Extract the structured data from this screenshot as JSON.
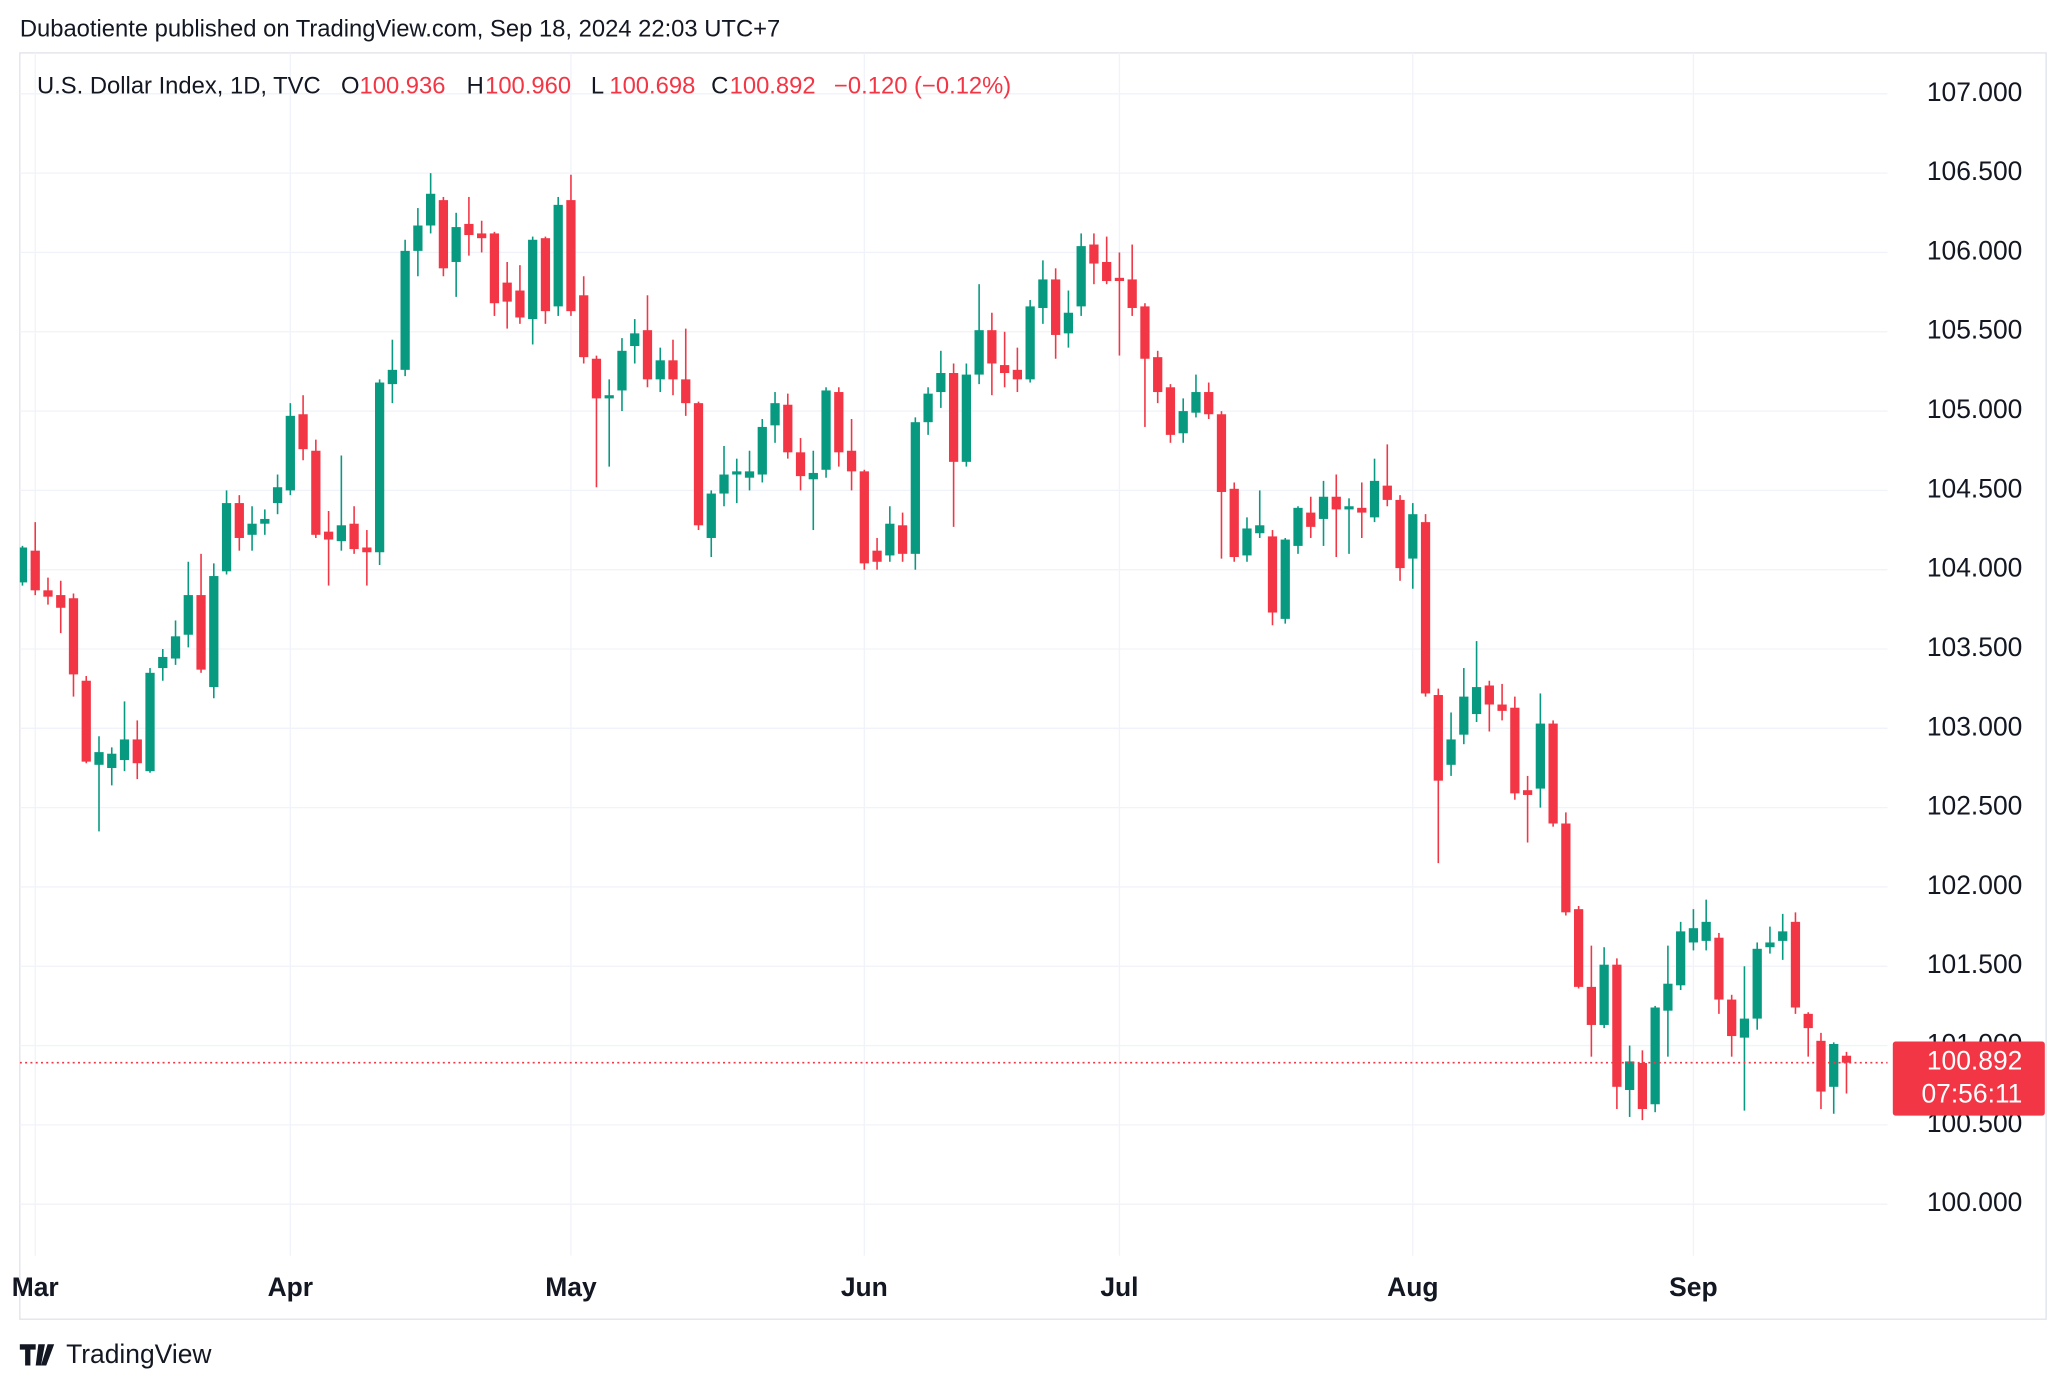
{
  "header": "Dubaotiente published on TradingView.com, Sep 18, 2024 22:03 UTC+7",
  "footer": "TradingView",
  "chart_data": {
    "type": "candlestick",
    "legend": {
      "symbol": "U.S. Dollar Index, 1D, TVC",
      "ohlc_labels": [
        "O",
        "H",
        "L",
        "C"
      ],
      "ohlc_values": [
        "100.936",
        "100.960",
        "100.698",
        "100.892"
      ],
      "change": "−0.120 (−0.12%)"
    },
    "last_price": {
      "value": 100.892,
      "label": "100.892"
    },
    "countdown": "07:56:11",
    "up_color": "#089981",
    "down_color": "#f23645",
    "grid": true,
    "ylim": [
      99.675,
      107.258
    ],
    "yticks": [
      {
        "value": 100,
        "label": "100.000"
      },
      {
        "value": 100.5,
        "label": "100.500"
      },
      {
        "value": 101,
        "label": "101.000"
      },
      {
        "value": 101.5,
        "label": "101.500"
      },
      {
        "value": 102,
        "label": "102.000"
      },
      {
        "value": 102.5,
        "label": "102.500"
      },
      {
        "value": 103,
        "label": "103.000"
      },
      {
        "value": 103.5,
        "label": "103.500"
      },
      {
        "value": 104,
        "label": "104.000"
      },
      {
        "value": 104.5,
        "label": "104.500"
      },
      {
        "value": 105,
        "label": "105.000"
      },
      {
        "value": 105.5,
        "label": "105.500"
      },
      {
        "value": 106,
        "label": "106.000"
      },
      {
        "value": 106.5,
        "label": "106.500"
      },
      {
        "value": 107,
        "label": "107.000"
      }
    ],
    "categories": [
      null,
      "Mar",
      null,
      null,
      null,
      null,
      null,
      null,
      null,
      null,
      null,
      null,
      null,
      null,
      null,
      null,
      null,
      null,
      null,
      null,
      null,
      "Apr",
      null,
      null,
      null,
      null,
      null,
      null,
      null,
      null,
      null,
      null,
      null,
      null,
      null,
      null,
      null,
      null,
      null,
      null,
      null,
      null,
      null,
      "May",
      null,
      null,
      null,
      null,
      null,
      null,
      null,
      null,
      null,
      null,
      null,
      null,
      null,
      null,
      null,
      null,
      null,
      null,
      null,
      null,
      null,
      null,
      "Jun",
      null,
      null,
      null,
      null,
      null,
      null,
      null,
      null,
      null,
      null,
      null,
      null,
      null,
      null,
      null,
      null,
      null,
      null,
      null,
      "Jul",
      null,
      null,
      null,
      null,
      null,
      null,
      null,
      null,
      null,
      null,
      null,
      null,
      null,
      null,
      null,
      null,
      null,
      null,
      null,
      null,
      null,
      null,
      "Aug",
      null,
      null,
      null,
      null,
      null,
      null,
      null,
      null,
      null,
      null,
      null,
      null,
      null,
      null,
      null,
      null,
      null,
      null,
      null,
      null,
      null,
      "Sep",
      null,
      null,
      null,
      null,
      null,
      null,
      null,
      null,
      null,
      null,
      null,
      null
    ],
    "ohlc": {
      "open": [
        103.92,
        104.12,
        103.87,
        103.84,
        103.82,
        103.3,
        102.77,
        102.75,
        102.8,
        102.93,
        102.73,
        103.38,
        103.44,
        103.59,
        103.84,
        103.26,
        103.99,
        104.42,
        104.22,
        104.29,
        104.42,
        104.5,
        104.98,
        104.75,
        104.24,
        104.18,
        104.29,
        104.14,
        104.11,
        105.17,
        105.26,
        106.01,
        106.17,
        106.33,
        105.94,
        106.18,
        106.12,
        106.12,
        105.81,
        105.76,
        105.58,
        106.09,
        105.66,
        106.33,
        105.73,
        105.33,
        105.08,
        105.13,
        105.41,
        105.51,
        105.2,
        105.32,
        105.2,
        105.05,
        104.2,
        104.48,
        104.6,
        104.58,
        104.6,
        104.91,
        105.04,
        104.74,
        104.57,
        104.63,
        105.12,
        104.75,
        104.62,
        104.12,
        104.09,
        104.28,
        104.1,
        104.93,
        105.12,
        105.24,
        104.68,
        105.23,
        105.51,
        105.29,
        105.26,
        105.2,
        105.65,
        105.83,
        105.49,
        105.66,
        106.05,
        105.94,
        105.84,
        105.83,
        105.66,
        105.34,
        105.15,
        104.86,
        104.99,
        105.12,
        104.98,
        104.51,
        104.09,
        104.23,
        104.21,
        103.69,
        104.15,
        104.36,
        104.32,
        104.46,
        104.38,
        104.39,
        104.33,
        104.53,
        104.44,
        104.07,
        104.3,
        103.21,
        102.77,
        102.96,
        103.09,
        103.27,
        103.15,
        103.13,
        102.61,
        102.62,
        103.03,
        102.4,
        101.86,
        101.37,
        101.13,
        101.51,
        100.72,
        100.89,
        100.63,
        101.22,
        101.38,
        101.65,
        101.66,
        101.68,
        101.29,
        101.05,
        101.17,
        101.62,
        101.66,
        101.78,
        101.2,
        101.03,
        100.74,
        100.936
      ],
      "high": [
        104.15,
        104.3,
        103.95,
        103.93,
        103.85,
        103.33,
        102.95,
        102.88,
        103.17,
        103.05,
        103.38,
        103.5,
        103.68,
        104.05,
        104.1,
        104.04,
        104.5,
        104.47,
        104.4,
        104.38,
        104.6,
        105.05,
        105.1,
        104.82,
        104.37,
        104.72,
        104.4,
        104.25,
        105.2,
        105.45,
        106.08,
        106.28,
        106.5,
        106.35,
        106.25,
        106.35,
        106.2,
        106.13,
        105.94,
        105.92,
        106.1,
        106.1,
        106.35,
        106.49,
        105.85,
        105.35,
        105.2,
        105.46,
        105.58,
        105.73,
        105.4,
        105.45,
        105.52,
        105.06,
        104.5,
        104.78,
        104.7,
        104.75,
        104.95,
        105.12,
        105.11,
        104.83,
        104.75,
        105.15,
        105.15,
        104.95,
        104.63,
        104.2,
        104.4,
        104.36,
        104.96,
        105.15,
        105.38,
        105.3,
        105.3,
        105.8,
        105.62,
        105.5,
        105.4,
        105.7,
        105.95,
        105.9,
        105.76,
        106.12,
        106.12,
        106.1,
        106.0,
        106.05,
        105.68,
        105.38,
        105.17,
        105.08,
        105.23,
        105.18,
        105.0,
        104.55,
        104.33,
        104.5,
        104.25,
        104.2,
        104.4,
        104.46,
        104.56,
        104.6,
        104.45,
        104.55,
        104.7,
        104.79,
        104.47,
        104.42,
        104.35,
        103.25,
        103.1,
        103.38,
        103.55,
        103.3,
        103.28,
        103.2,
        102.7,
        103.22,
        103.05,
        102.47,
        101.88,
        101.63,
        101.62,
        101.55,
        101.0,
        100.97,
        101.25,
        101.63,
        101.78,
        101.86,
        101.92,
        101.71,
        101.32,
        101.5,
        101.65,
        101.75,
        101.83,
        101.84,
        101.21,
        101.08,
        101.02,
        100.96
      ],
      "low": [
        103.9,
        103.84,
        103.78,
        103.6,
        103.2,
        102.78,
        102.35,
        102.64,
        102.73,
        102.68,
        102.72,
        103.3,
        103.4,
        103.51,
        103.35,
        103.19,
        103.97,
        104.12,
        104.12,
        104.22,
        104.35,
        104.47,
        104.69,
        104.2,
        103.9,
        104.12,
        104.1,
        103.9,
        104.03,
        105.05,
        105.22,
        105.85,
        106.12,
        105.85,
        105.72,
        105.98,
        106.0,
        105.6,
        105.52,
        105.55,
        105.42,
        105.55,
        105.6,
        105.6,
        105.3,
        104.52,
        104.65,
        105.0,
        105.3,
        105.15,
        105.12,
        105.1,
        104.97,
        104.25,
        104.08,
        104.4,
        104.42,
        104.5,
        104.55,
        104.8,
        104.7,
        104.5,
        104.25,
        104.58,
        104.65,
        104.5,
        104.0,
        104.0,
        104.05,
        104.05,
        104.0,
        104.85,
        105.02,
        104.27,
        104.65,
        105.17,
        105.1,
        105.15,
        105.12,
        105.18,
        105.55,
        105.33,
        105.4,
        105.6,
        105.8,
        105.8,
        105.35,
        105.6,
        104.9,
        105.05,
        104.8,
        104.8,
        104.96,
        104.95,
        104.07,
        104.05,
        104.05,
        104.2,
        103.65,
        103.66,
        104.1,
        104.2,
        104.15,
        104.08,
        104.1,
        104.2,
        104.3,
        104.4,
        103.93,
        103.88,
        103.2,
        102.15,
        102.7,
        102.9,
        103.04,
        102.98,
        103.05,
        102.55,
        102.28,
        102.5,
        102.38,
        101.82,
        101.36,
        100.93,
        101.11,
        100.6,
        100.55,
        100.53,
        100.58,
        100.93,
        101.35,
        101.6,
        101.6,
        101.2,
        100.93,
        100.59,
        101.1,
        101.58,
        101.54,
        101.2,
        100.93,
        100.6,
        100.57,
        100.698
      ],
      "close": [
        104.14,
        103.87,
        103.83,
        103.76,
        103.34,
        102.79,
        102.85,
        102.84,
        102.93,
        102.78,
        103.35,
        103.45,
        103.58,
        103.84,
        103.37,
        103.96,
        104.42,
        104.2,
        104.29,
        104.32,
        104.52,
        104.97,
        104.76,
        104.22,
        104.19,
        104.28,
        104.13,
        104.11,
        105.18,
        105.26,
        106.01,
        106.17,
        106.37,
        105.9,
        106.16,
        106.11,
        106.09,
        105.68,
        105.69,
        105.59,
        106.08,
        105.63,
        106.3,
        105.63,
        105.34,
        105.08,
        105.1,
        105.38,
        105.49,
        105.2,
        105.32,
        105.2,
        105.05,
        104.28,
        104.48,
        104.6,
        104.62,
        104.62,
        104.9,
        105.05,
        104.74,
        104.59,
        104.61,
        105.13,
        104.74,
        104.62,
        104.04,
        104.05,
        104.29,
        104.1,
        104.93,
        105.11,
        105.24,
        104.68,
        105.23,
        105.51,
        105.3,
        105.24,
        105.2,
        105.66,
        105.83,
        105.48,
        105.62,
        106.04,
        105.93,
        105.82,
        105.82,
        105.65,
        105.33,
        105.12,
        104.85,
        105.0,
        105.12,
        104.98,
        104.49,
        104.08,
        104.26,
        104.28,
        103.73,
        104.19,
        104.39,
        104.27,
        104.46,
        104.38,
        104.4,
        104.36,
        104.56,
        104.44,
        104.01,
        104.35,
        103.22,
        102.67,
        102.93,
        103.2,
        103.26,
        103.15,
        103.11,
        102.59,
        102.58,
        103.03,
        102.4,
        101.84,
        101.37,
        101.13,
        101.51,
        100.74,
        100.9,
        100.6,
        101.24,
        101.39,
        101.72,
        101.74,
        101.78,
        101.29,
        101.06,
        101.17,
        101.61,
        101.65,
        101.72,
        101.24,
        101.11,
        100.71,
        101.01,
        100.892
      ]
    }
  }
}
